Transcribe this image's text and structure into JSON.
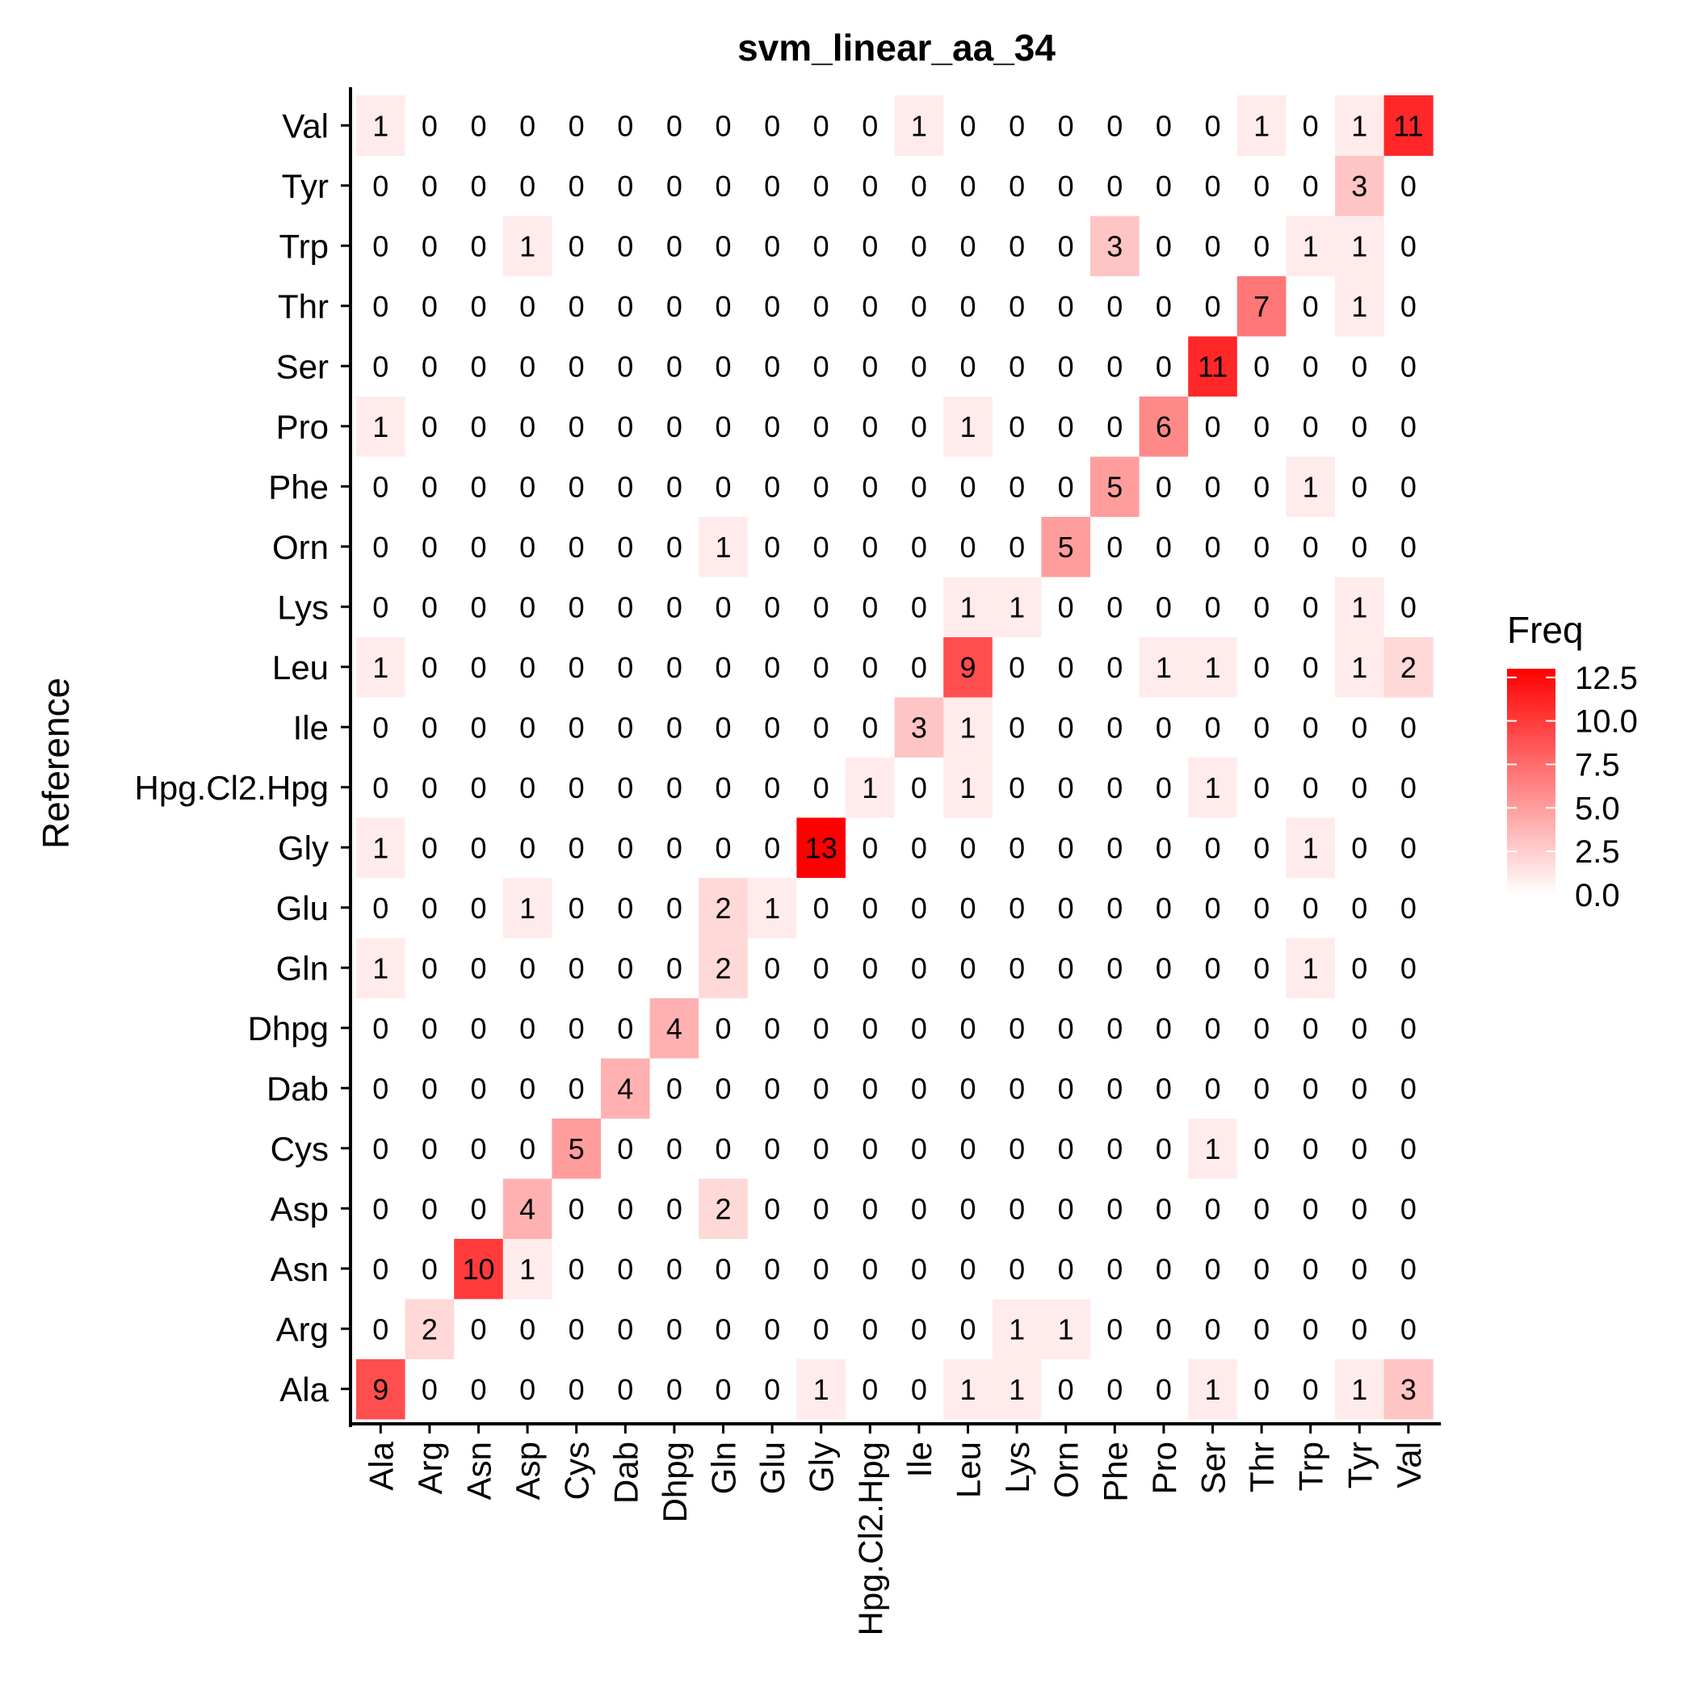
{
  "chart_data": {
    "type": "heatmap",
    "title": "svm_linear_aa_34",
    "ylabel": "Reference",
    "xlabel": "",
    "x_categories": [
      "Ala",
      "Arg",
      "Asn",
      "Asp",
      "Cys",
      "Dab",
      "Dhpg",
      "Gln",
      "Glu",
      "Gly",
      "Hpg.Cl2.Hpg",
      "Ile",
      "Leu",
      "Lys",
      "Orn",
      "Phe",
      "Pro",
      "Ser",
      "Thr",
      "Trp",
      "Tyr",
      "Val"
    ],
    "y_categories": [
      "Ala",
      "Arg",
      "Asn",
      "Asp",
      "Cys",
      "Dab",
      "Dhpg",
      "Gln",
      "Glu",
      "Gly",
      "Hpg.Cl2.Hpg",
      "Ile",
      "Leu",
      "Lys",
      "Orn",
      "Phe",
      "Pro",
      "Ser",
      "Thr",
      "Trp",
      "Tyr",
      "Val"
    ],
    "values": [
      [
        9,
        0,
        0,
        0,
        0,
        0,
        0,
        0,
        0,
        1,
        0,
        0,
        1,
        1,
        0,
        0,
        0,
        1,
        0,
        0,
        1,
        3
      ],
      [
        0,
        2,
        0,
        0,
        0,
        0,
        0,
        0,
        0,
        0,
        0,
        0,
        0,
        1,
        1,
        0,
        0,
        0,
        0,
        0,
        0,
        0
      ],
      [
        0,
        0,
        10,
        1,
        0,
        0,
        0,
        0,
        0,
        0,
        0,
        0,
        0,
        0,
        0,
        0,
        0,
        0,
        0,
        0,
        0,
        0
      ],
      [
        0,
        0,
        0,
        4,
        0,
        0,
        0,
        2,
        0,
        0,
        0,
        0,
        0,
        0,
        0,
        0,
        0,
        0,
        0,
        0,
        0,
        0
      ],
      [
        0,
        0,
        0,
        0,
        5,
        0,
        0,
        0,
        0,
        0,
        0,
        0,
        0,
        0,
        0,
        0,
        0,
        1,
        0,
        0,
        0,
        0
      ],
      [
        0,
        0,
        0,
        0,
        0,
        4,
        0,
        0,
        0,
        0,
        0,
        0,
        0,
        0,
        0,
        0,
        0,
        0,
        0,
        0,
        0,
        0
      ],
      [
        0,
        0,
        0,
        0,
        0,
        0,
        4,
        0,
        0,
        0,
        0,
        0,
        0,
        0,
        0,
        0,
        0,
        0,
        0,
        0,
        0,
        0
      ],
      [
        1,
        0,
        0,
        0,
        0,
        0,
        0,
        2,
        0,
        0,
        0,
        0,
        0,
        0,
        0,
        0,
        0,
        0,
        0,
        1,
        0,
        0
      ],
      [
        0,
        0,
        0,
        1,
        0,
        0,
        0,
        2,
        1,
        0,
        0,
        0,
        0,
        0,
        0,
        0,
        0,
        0,
        0,
        0,
        0,
        0
      ],
      [
        1,
        0,
        0,
        0,
        0,
        0,
        0,
        0,
        0,
        13,
        0,
        0,
        0,
        0,
        0,
        0,
        0,
        0,
        0,
        1,
        0,
        0
      ],
      [
        0,
        0,
        0,
        0,
        0,
        0,
        0,
        0,
        0,
        0,
        1,
        0,
        1,
        0,
        0,
        0,
        0,
        1,
        0,
        0,
        0,
        0
      ],
      [
        0,
        0,
        0,
        0,
        0,
        0,
        0,
        0,
        0,
        0,
        0,
        3,
        1,
        0,
        0,
        0,
        0,
        0,
        0,
        0,
        0,
        0
      ],
      [
        1,
        0,
        0,
        0,
        0,
        0,
        0,
        0,
        0,
        0,
        0,
        0,
        9,
        0,
        0,
        0,
        1,
        1,
        0,
        0,
        1,
        2
      ],
      [
        0,
        0,
        0,
        0,
        0,
        0,
        0,
        0,
        0,
        0,
        0,
        0,
        1,
        1,
        0,
        0,
        0,
        0,
        0,
        0,
        1,
        0
      ],
      [
        0,
        0,
        0,
        0,
        0,
        0,
        0,
        1,
        0,
        0,
        0,
        0,
        0,
        0,
        5,
        0,
        0,
        0,
        0,
        0,
        0,
        0
      ],
      [
        0,
        0,
        0,
        0,
        0,
        0,
        0,
        0,
        0,
        0,
        0,
        0,
        0,
        0,
        0,
        5,
        0,
        0,
        0,
        1,
        0,
        0
      ],
      [
        1,
        0,
        0,
        0,
        0,
        0,
        0,
        0,
        0,
        0,
        0,
        0,
        1,
        0,
        0,
        0,
        6,
        0,
        0,
        0,
        0,
        0
      ],
      [
        0,
        0,
        0,
        0,
        0,
        0,
        0,
        0,
        0,
        0,
        0,
        0,
        0,
        0,
        0,
        0,
        0,
        11,
        0,
        0,
        0,
        0
      ],
      [
        0,
        0,
        0,
        0,
        0,
        0,
        0,
        0,
        0,
        0,
        0,
        0,
        0,
        0,
        0,
        0,
        0,
        0,
        7,
        0,
        1,
        0
      ],
      [
        0,
        0,
        0,
        1,
        0,
        0,
        0,
        0,
        0,
        0,
        0,
        0,
        0,
        0,
        0,
        3,
        0,
        0,
        0,
        1,
        1,
        0
      ],
      [
        0,
        0,
        0,
        0,
        0,
        0,
        0,
        0,
        0,
        0,
        0,
        0,
        0,
        0,
        0,
        0,
        0,
        0,
        0,
        0,
        3,
        0
      ],
      [
        1,
        0,
        0,
        0,
        0,
        0,
        0,
        0,
        0,
        0,
        0,
        1,
        0,
        0,
        0,
        0,
        0,
        0,
        1,
        0,
        1,
        11
      ]
    ],
    "color_scale": {
      "low": "#ffffff",
      "high": "#ff0000",
      "min": 0,
      "max": 13
    },
    "legend": {
      "title": "Freq",
      "ticks": [
        12.5,
        10.0,
        7.5,
        5.0,
        2.5,
        0.0
      ],
      "tick_labels": [
        "12.5",
        "10.0",
        "7.5",
        "5.0",
        "2.5",
        "0.0"
      ],
      "position": "right"
    },
    "grid": false
  }
}
